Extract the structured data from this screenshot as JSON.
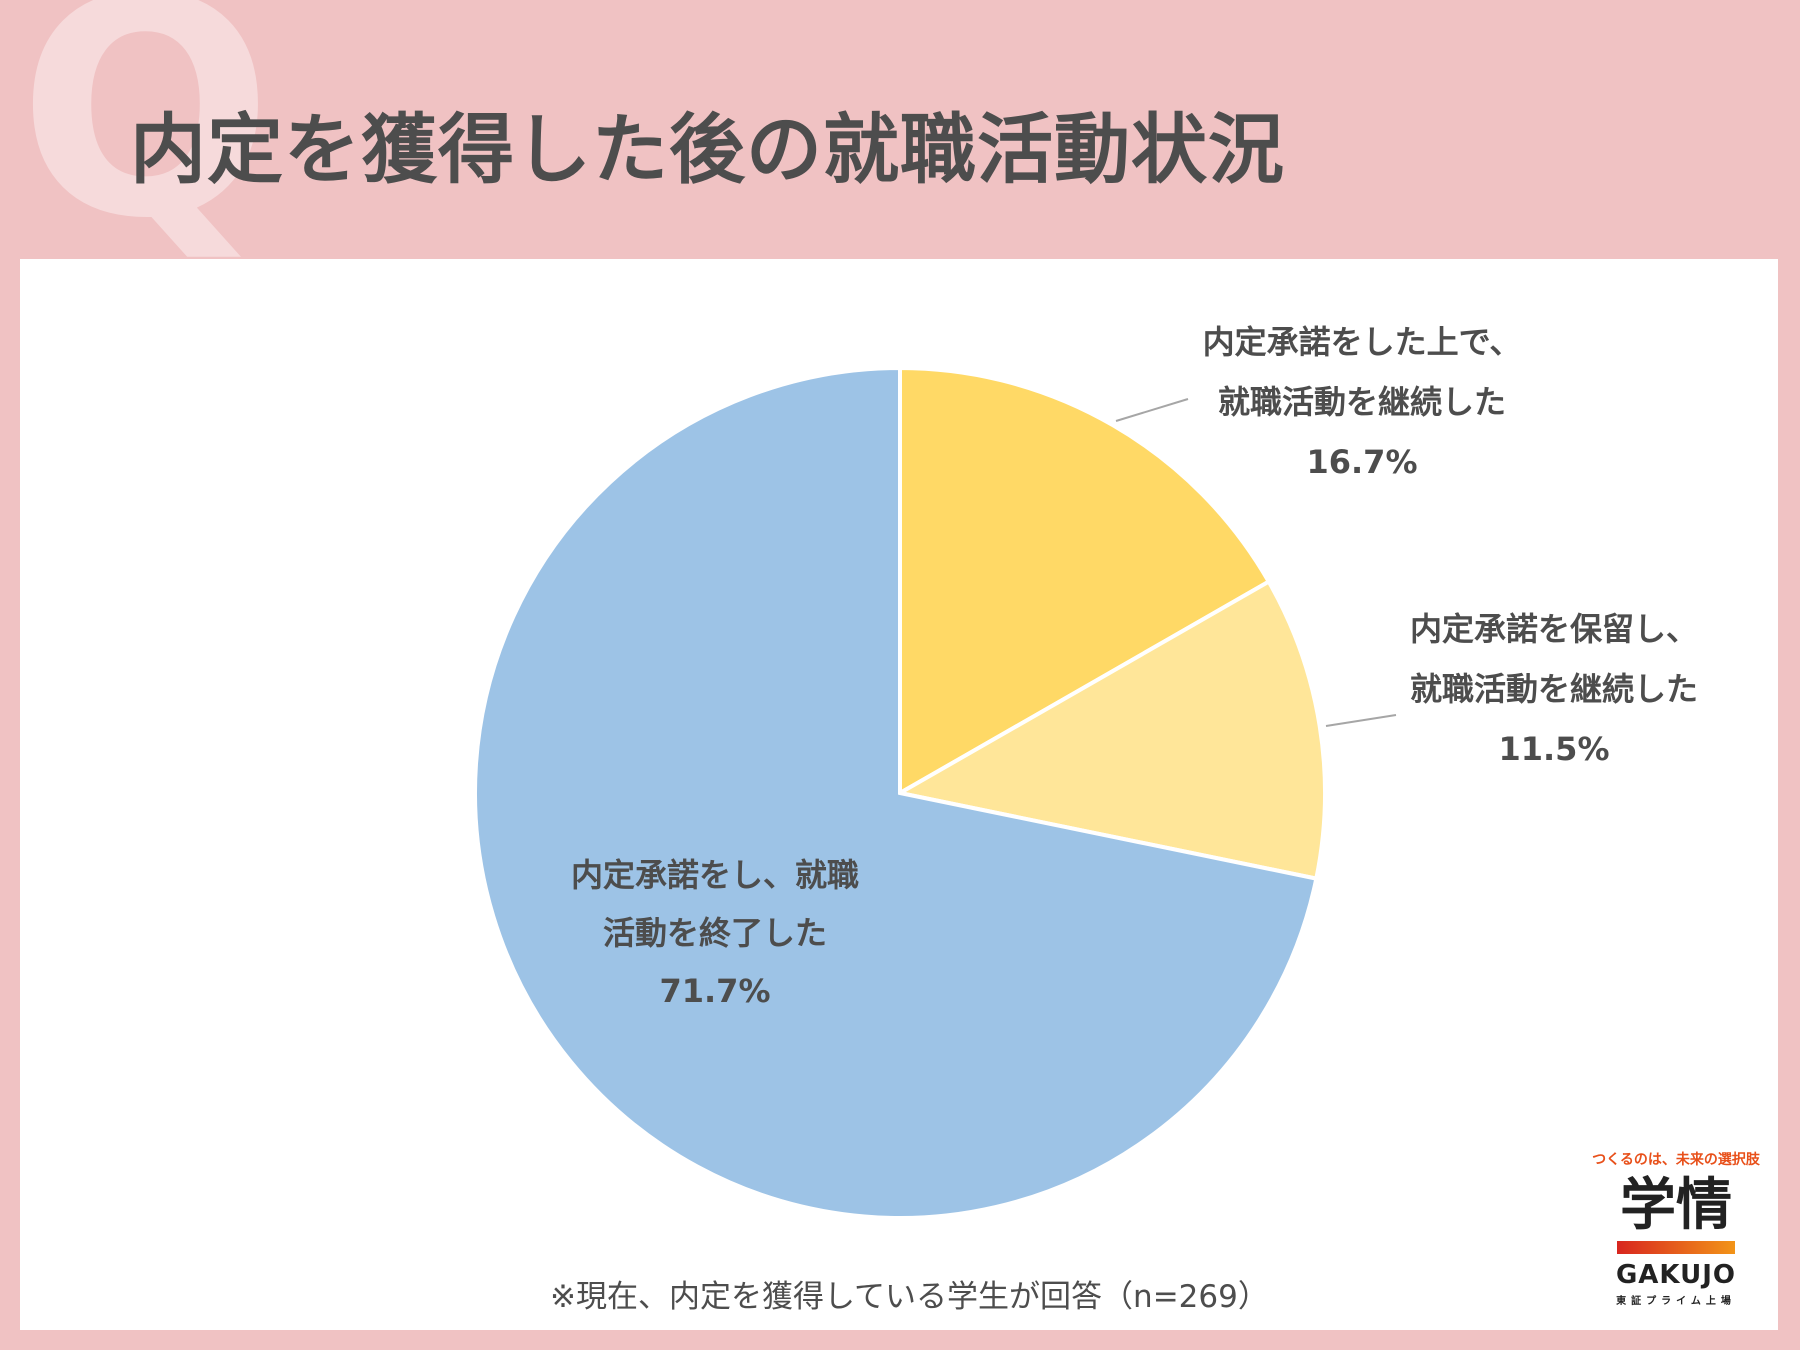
{
  "header": {
    "badge_letter": "Q",
    "title": "内定を獲得した後の就職活動状況"
  },
  "chart_data": {
    "type": "pie",
    "slices": [
      {
        "label_lines": [
          "内定承諾をした上で、",
          "就職活動を継続した"
        ],
        "value": 16.7,
        "value_label": "16.7%",
        "color": "#ffd966"
      },
      {
        "label_lines": [
          "内定承諾を保留し、",
          "就職活動を継続した"
        ],
        "value": 11.5,
        "value_label": "11.5%",
        "color": "#ffe699"
      },
      {
        "label_lines": [
          "内定承諾をし、就職",
          "活動を終了した"
        ],
        "value": 71.7,
        "value_label": "71.7%",
        "color": "#9dc3e6"
      }
    ],
    "start": "12 o'clock",
    "direction": "clockwise"
  },
  "footnote": "※現在、内定を獲得している学生が回答（n=269）",
  "logo": {
    "tagline": "つくるのは、未来の選択肢",
    "mark": "学情",
    "name": "GAKUJO",
    "listing": "東証プライム上場"
  }
}
